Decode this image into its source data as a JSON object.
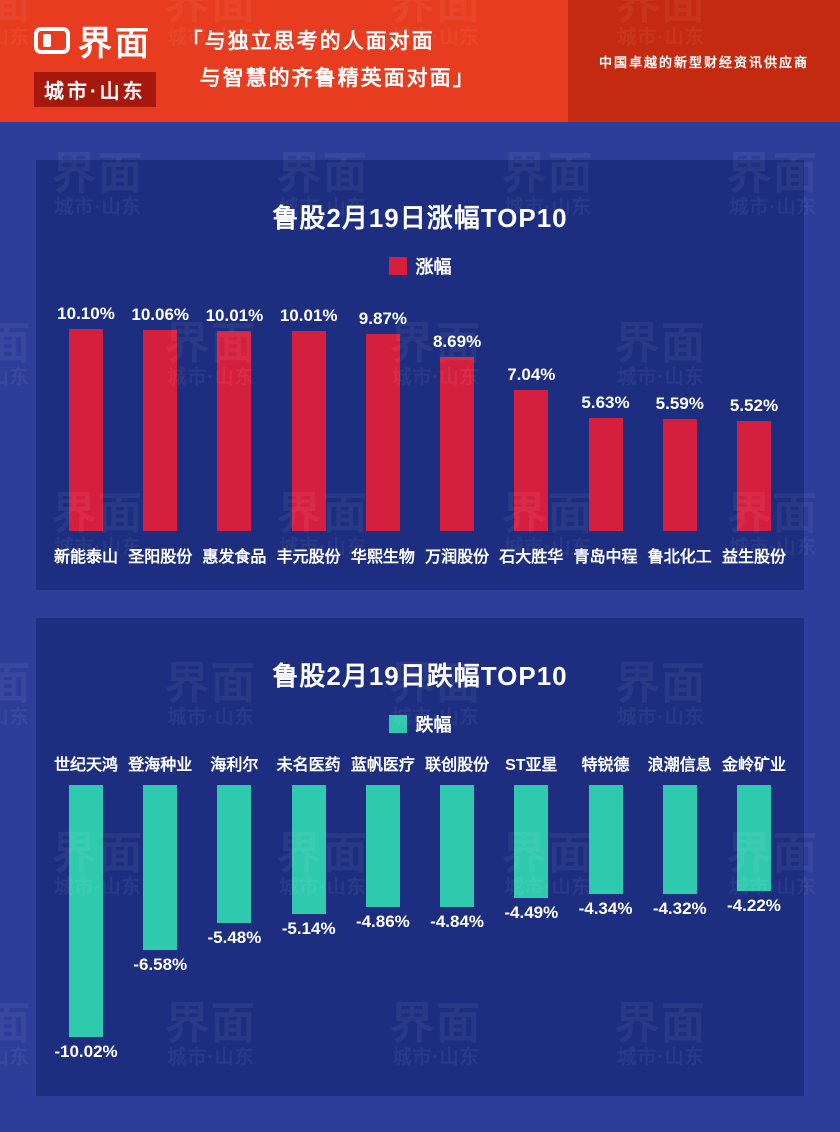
{
  "header": {
    "logo_text": "界面",
    "logo_sub": "城市·山东",
    "quote_line1": "「与独立思考的人面对面",
    "quote_line2": "与智慧的齐鲁精英面对面」",
    "tagline": "中国卓越的新型财经资讯供应商"
  },
  "watermark": {
    "big": "界面",
    "small": "城市·山东"
  },
  "colors": {
    "header_bg": "#e73c1f",
    "header_dark": "#c42a10",
    "page_bg": "#2e3d99",
    "panel_bg": "#1d2e80",
    "up_bar": "#d51f3f",
    "down_bar": "#2fc9ae"
  },
  "chart_data": [
    {
      "type": "bar",
      "title": "鲁股2月19日涨幅TOP10",
      "legend": "涨幅",
      "bar_color": "#d51f3f",
      "categories": [
        "新能泰山",
        "圣阳股份",
        "惠发食品",
        "丰元股份",
        "华熙生物",
        "万润股份",
        "石大胜华",
        "青岛中程",
        "鲁北化工",
        "益生股份"
      ],
      "values": [
        10.1,
        10.06,
        10.01,
        10.01,
        9.87,
        8.69,
        7.04,
        5.63,
        5.59,
        5.52
      ],
      "labels": [
        "10.10%",
        "10.06%",
        "10.01%",
        "10.01%",
        "9.87%",
        "8.69%",
        "7.04%",
        "5.63%",
        "5.59%",
        "5.52%"
      ],
      "ylim": [
        0,
        10.1
      ]
    },
    {
      "type": "bar",
      "title": "鲁股2月19日跌幅TOP10",
      "legend": "跌幅",
      "bar_color": "#2fc9ae",
      "categories": [
        "世纪天鸿",
        "登海种业",
        "海利尔",
        "未名医药",
        "蓝帆医疗",
        "联创股份",
        "ST亚星",
        "特锐德",
        "浪潮信息",
        "金岭矿业"
      ],
      "values": [
        -10.02,
        -6.58,
        -5.48,
        -5.14,
        -4.86,
        -4.84,
        -4.49,
        -4.34,
        -4.32,
        -4.22
      ],
      "labels": [
        "-10.02%",
        "-6.58%",
        "-5.48%",
        "-5.14%",
        "-4.86%",
        "-4.84%",
        "-4.49%",
        "-4.34%",
        "-4.32%",
        "-4.22%"
      ],
      "ylim": [
        -10.02,
        0
      ]
    }
  ]
}
